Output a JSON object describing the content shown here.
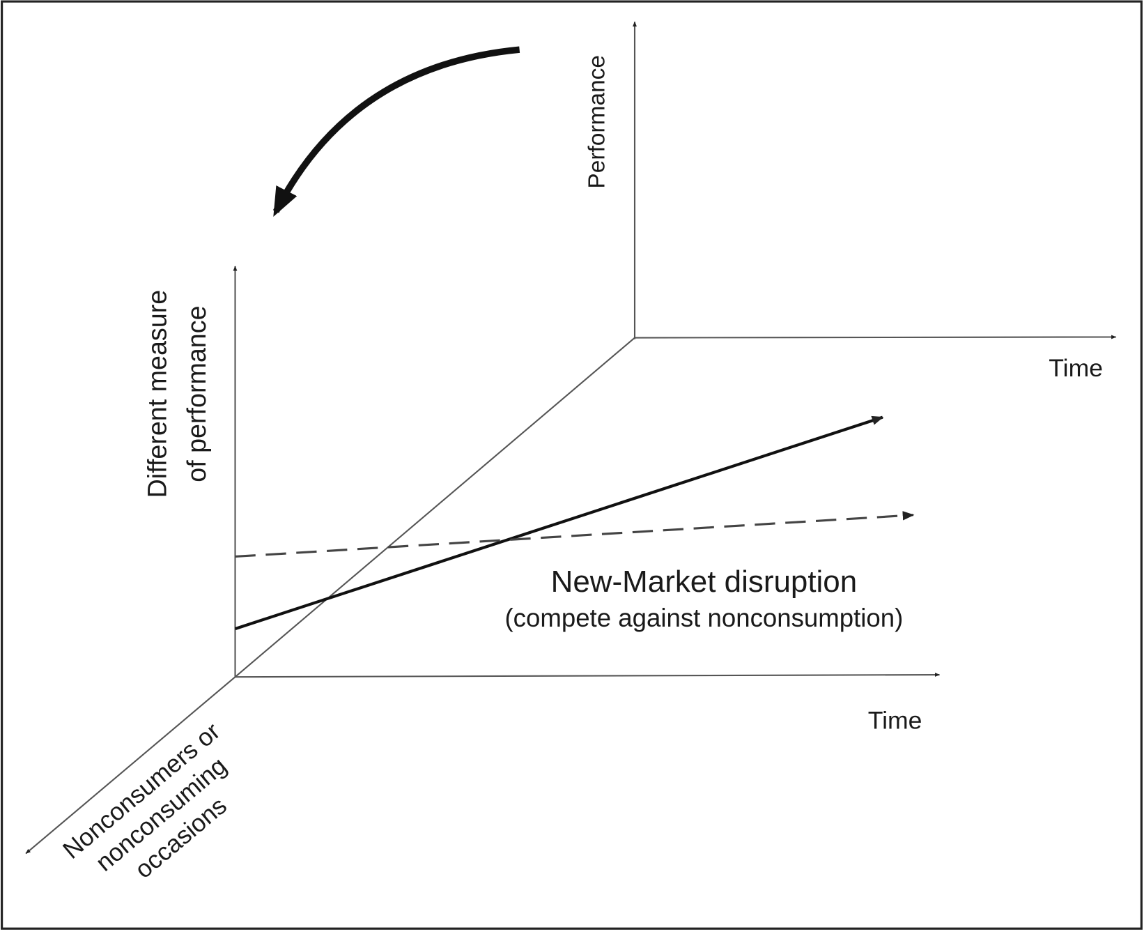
{
  "back_axes": {
    "y_label": "Performance",
    "x_label": "Time"
  },
  "front_axes": {
    "y_label": [
      "Different measure",
      "of performance"
    ],
    "x_label": "Time",
    "z_label": [
      "Nonconsumers or",
      "nonconsuming",
      "occasions"
    ]
  },
  "caption": {
    "title": "New-Market disruption",
    "subtitle": "(compete against nonconsumption)"
  }
}
